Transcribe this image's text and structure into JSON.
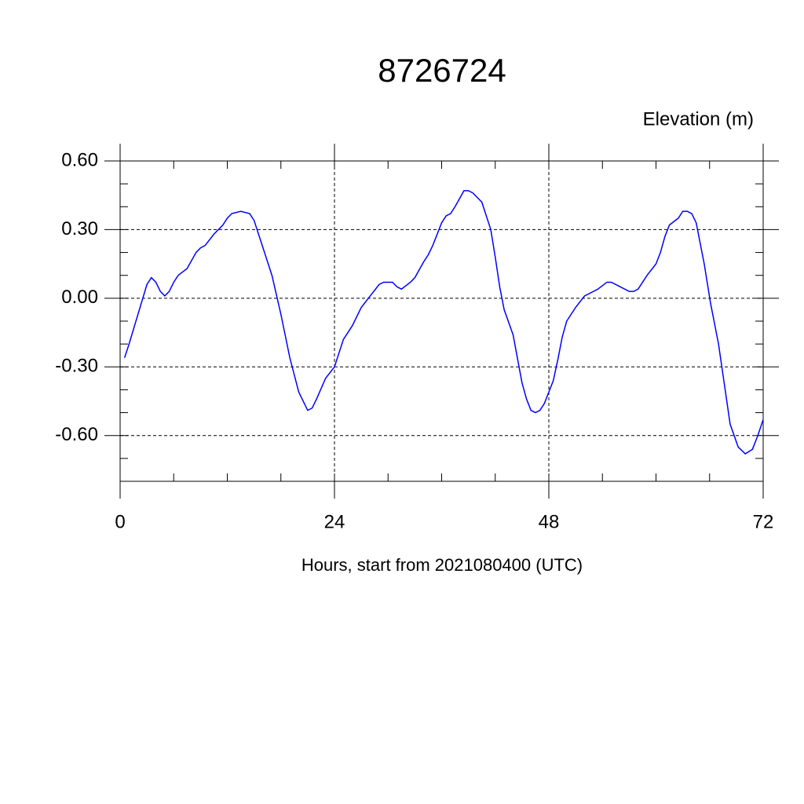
{
  "chart_data": {
    "type": "line",
    "title": "8726724",
    "ylabel": "Elevation (m)",
    "xlabel": "Hours, start from 2021080400 (UTC)",
    "x": [
      0.5,
      1,
      2,
      3,
      3.5,
      4,
      4.5,
      5,
      5.5,
      6,
      6.5,
      7.5,
      8.5,
      9,
      9.5,
      10.5,
      11.5,
      12,
      12.5,
      13.5,
      14.5,
      15,
      16,
      17,
      18,
      19,
      20,
      21,
      21.5,
      22,
      23,
      24,
      25,
      26,
      27,
      28,
      29,
      29.5,
      30.5,
      31,
      31.5,
      32.5,
      33,
      34,
      34.5,
      35,
      36,
      36.5,
      37,
      37.5,
      38.5,
      39,
      39.5,
      40.5,
      41.5,
      42,
      42.5,
      43,
      44,
      45,
      45.5,
      46,
      46.5,
      47,
      47.5,
      48.5,
      49,
      49.5,
      50,
      50.5,
      51,
      52,
      53,
      53.5,
      54.5,
      55,
      56,
      57,
      57.5,
      58,
      59,
      60,
      60.5,
      61,
      61.5,
      62.5,
      63,
      63.5,
      64,
      64.5,
      65.4,
      66.1,
      67,
      68.3,
      69.2,
      70,
      70.8,
      71.4,
      72
    ],
    "series": [
      {
        "name": "Elevation",
        "color": "#0000ff",
        "values": [
          -0.26,
          -0.2,
          -0.07,
          0.06,
          0.09,
          0.07,
          0.03,
          0.01,
          0.03,
          0.07,
          0.1,
          0.13,
          0.2,
          0.22,
          0.23,
          0.28,
          0.32,
          0.35,
          0.37,
          0.38,
          0.37,
          0.34,
          0.22,
          0.1,
          -0.07,
          -0.26,
          -0.41,
          -0.49,
          -0.48,
          -0.44,
          -0.35,
          -0.3,
          -0.18,
          -0.12,
          -0.04,
          0.01,
          0.06,
          0.07,
          0.07,
          0.05,
          0.04,
          0.07,
          0.09,
          0.16,
          0.19,
          0.23,
          0.33,
          0.36,
          0.37,
          0.4,
          0.47,
          0.47,
          0.46,
          0.42,
          0.3,
          0.18,
          0.05,
          -0.05,
          -0.16,
          -0.37,
          -0.44,
          -0.49,
          -0.5,
          -0.49,
          -0.46,
          -0.36,
          -0.27,
          -0.17,
          -0.1,
          -0.07,
          -0.04,
          0.01,
          0.03,
          0.04,
          0.07,
          0.07,
          0.05,
          0.03,
          0.03,
          0.04,
          0.1,
          0.15,
          0.2,
          0.27,
          0.32,
          0.35,
          0.38,
          0.38,
          0.37,
          0.33,
          0.15,
          -0.02,
          -0.2,
          -0.55,
          -0.65,
          -0.68,
          -0.66,
          -0.6,
          -0.53
        ]
      }
    ],
    "xlim": [
      0,
      72
    ],
    "xticks": [
      0,
      24,
      48,
      72
    ],
    "ylim": [
      -0.8,
      0.6
    ],
    "yticks": [
      {
        "value": 0.6,
        "label": "0.60"
      },
      {
        "value": 0.3,
        "label": "0.30"
      },
      {
        "value": 0,
        "label": "0.00"
      },
      {
        "value": -0.3,
        "label": "-0.30"
      },
      {
        "value": -0.6,
        "label": "-0.60"
      }
    ],
    "grid": true
  }
}
